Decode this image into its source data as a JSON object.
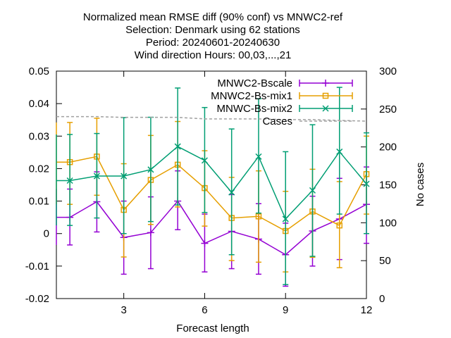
{
  "chart_data": {
    "type": "line",
    "title": [
      "Normalized mean RMSE diff (90% conf) vs MNWC2-ref",
      "Selection: Denmark using    62 stations",
      "Period: 20240601-20240630",
      "Wind direction   Hours: 00,03,...,21"
    ],
    "xlabel": "Forecast length",
    "ylabel": "",
    "y2label": "No cases",
    "xlim": [
      0.5,
      12
    ],
    "ylim": [
      -0.02,
      0.05
    ],
    "y2lim": [
      0,
      300
    ],
    "xticks": [
      3,
      6,
      9,
      12
    ],
    "yticks": [
      -0.02,
      -0.01,
      0,
      0.01,
      0.02,
      0.03,
      0.04,
      0.05
    ],
    "ytick_labels": [
      "-0.02",
      "-0.01",
      "0",
      "0.01",
      "0.02",
      "0.03",
      "0.04",
      "0.05"
    ],
    "y2ticks": [
      0,
      50,
      100,
      150,
      200,
      250,
      300
    ],
    "grid": false,
    "legend_position": "top-right",
    "x": [
      0.5,
      1,
      2,
      3,
      4,
      5,
      6,
      7,
      8,
      9,
      10,
      11,
      12
    ],
    "series": [
      {
        "name": "MNWC2-Bscale",
        "color": "#9400d3",
        "marker": "plus",
        "y": [
          0.005,
          0.005,
          0.0098,
          -0.0012,
          0.0003,
          0.01,
          -0.003,
          0.0007,
          -0.0017,
          -0.0065,
          0.0008,
          0.0045,
          0.009
        ],
        "low": [
          -0.0035,
          -0.0035,
          0.0005,
          -0.0125,
          -0.0108,
          0.0012,
          -0.0118,
          -0.0108,
          -0.0125,
          -0.0162,
          -0.01,
          -0.008,
          -0.003
        ],
        "high": [
          0.0137,
          0.0137,
          0.019,
          0.01,
          0.0113,
          0.0193,
          0.006,
          0.012,
          0.0092,
          0.0032,
          0.0115,
          0.017,
          0.0205
        ]
      },
      {
        "name": "MNWC2-Bs-mix1",
        "color": "#e69f00",
        "marker": "box",
        "y": [
          0.022,
          0.022,
          0.0237,
          0.0073,
          0.0165,
          0.0212,
          0.014,
          0.0048,
          0.0053,
          0.0008,
          0.0068,
          0.0025,
          0.0183
        ],
        "low": [
          0.009,
          0.009,
          0.0118,
          -0.0072,
          0.0028,
          0.0082,
          0.0023,
          -0.0083,
          -0.0088,
          -0.0118,
          -0.0073,
          -0.0105,
          0.006
        ],
        "high": [
          0.0342,
          0.0342,
          0.0355,
          0.0215,
          0.0302,
          0.0345,
          0.0255,
          0.0173,
          0.0193,
          0.013,
          0.0198,
          0.016,
          0.03
        ]
      },
      {
        "name": "MNWC-Bs-mix2",
        "color": "#009e73",
        "marker": "cross",
        "y": [
          0.0163,
          0.0163,
          0.0177,
          0.0177,
          0.0197,
          0.0268,
          0.0225,
          0.0127,
          0.0237,
          0.0045,
          0.0133,
          0.0252,
          0.0153
        ],
        "low": [
          0.0025,
          0.0025,
          0.0048,
          0.0,
          0.0037,
          0.0088,
          0.0065,
          -0.0065,
          0.0063,
          -0.0157,
          -0.007,
          0.006,
          0.0
        ],
        "high": [
          0.0305,
          0.0305,
          0.0308,
          0.0357,
          0.0358,
          0.0448,
          0.0388,
          0.0322,
          0.0415,
          0.0252,
          0.0335,
          0.045,
          0.031
        ]
      },
      {
        "name": "Cases",
        "color": "#a0a0a0",
        "dash": true,
        "axis": "y2",
        "y": [
          240,
          240,
          240,
          239,
          239,
          239,
          237,
          237,
          237,
          236,
          236,
          235,
          234
        ]
      }
    ]
  }
}
